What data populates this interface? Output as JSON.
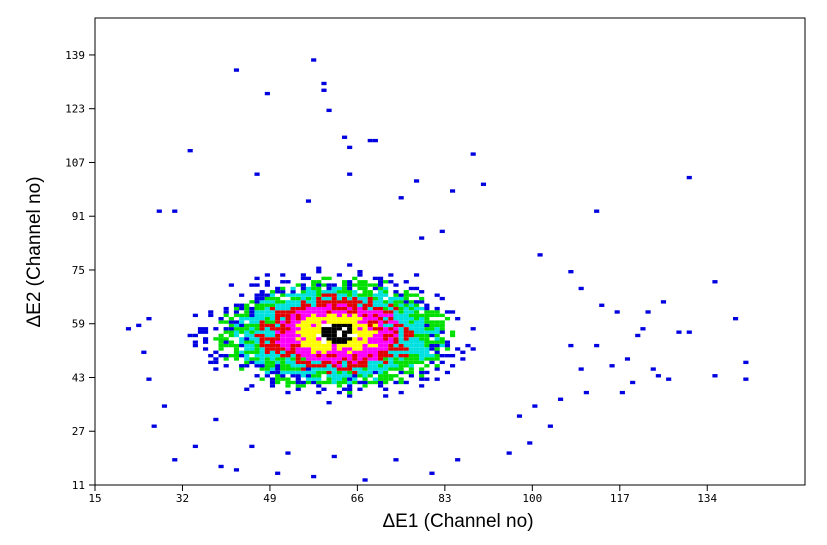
{
  "chart_data": {
    "type": "heatmap",
    "title": "",
    "xlabel": "ΔE1 (Channel no)",
    "ylabel": "ΔE2 (Channel no)",
    "xlim": [
      15,
      153
    ],
    "ylim": [
      11,
      150
    ],
    "x_ticks": [
      15,
      32,
      49,
      66,
      83,
      100,
      117,
      134
    ],
    "y_ticks": [
      11,
      27,
      43,
      59,
      75,
      91,
      107,
      123,
      139
    ],
    "grid": false,
    "legend": "none",
    "cell_size": 1,
    "peak": {
      "x": 62,
      "y": 56
    },
    "levels": [
      {
        "name": "level-1",
        "color": "#0000e0",
        "rx": 26,
        "ry": 18
      },
      {
        "name": "level-2",
        "color": "#00e000",
        "rx": 21,
        "ry": 15
      },
      {
        "name": "level-3",
        "color": "#00e0e0",
        "rx": 18,
        "ry": 13
      },
      {
        "name": "level-4",
        "color": "#e00000",
        "rx": 14,
        "ry": 10.5
      },
      {
        "name": "level-5",
        "color": "#ff00ff",
        "rx": 11,
        "ry": 8.5
      },
      {
        "name": "level-6",
        "color": "#ffff00",
        "rx": 7.5,
        "ry": 6
      },
      {
        "name": "level-7",
        "color": "#000000",
        "rx": 4,
        "ry": 3
      }
    ],
    "outliers": [
      [
        42,
        134
      ],
      [
        57,
        137
      ],
      [
        59,
        130
      ],
      [
        59,
        128
      ],
      [
        48,
        127
      ],
      [
        60,
        122
      ],
      [
        63,
        114
      ],
      [
        68,
        113
      ],
      [
        69,
        113
      ],
      [
        64,
        111
      ],
      [
        33,
        110
      ],
      [
        88,
        109
      ],
      [
        46,
        103
      ],
      [
        64,
        103
      ],
      [
        77,
        101
      ],
      [
        130,
        102
      ],
      [
        112,
        92
      ],
      [
        135,
        71
      ],
      [
        125,
        65
      ],
      [
        122,
        62
      ],
      [
        128,
        56
      ],
      [
        130,
        56
      ],
      [
        139,
        60
      ],
      [
        141,
        47
      ],
      [
        141,
        42
      ],
      [
        135,
        43
      ],
      [
        126,
        42
      ],
      [
        124,
        43
      ],
      [
        119,
        41
      ],
      [
        117,
        38
      ],
      [
        110,
        38
      ],
      [
        105,
        36
      ],
      [
        100,
        34
      ],
      [
        97,
        31
      ],
      [
        99,
        23
      ],
      [
        103,
        28
      ],
      [
        115,
        46
      ],
      [
        109,
        45
      ],
      [
        107,
        52
      ],
      [
        121,
        57
      ],
      [
        118,
        48
      ],
      [
        112,
        52
      ],
      [
        25,
        60
      ],
      [
        23,
        58
      ],
      [
        25,
        42
      ],
      [
        26,
        28
      ],
      [
        28,
        34
      ],
      [
        24,
        50
      ],
      [
        21,
        57
      ],
      [
        39,
        16
      ],
      [
        42,
        15
      ],
      [
        50,
        14
      ],
      [
        57,
        13
      ],
      [
        67,
        12
      ],
      [
        80,
        14
      ],
      [
        85,
        18
      ],
      [
        95,
        20
      ],
      [
        30,
        18
      ],
      [
        34,
        22
      ],
      [
        90,
        100
      ],
      [
        84,
        98
      ],
      [
        74,
        96
      ],
      [
        56,
        95
      ],
      [
        78,
        84
      ],
      [
        82,
        86
      ],
      [
        30,
        92
      ],
      [
        27,
        92
      ],
      [
        101,
        79
      ],
      [
        107,
        74
      ],
      [
        109,
        69
      ],
      [
        113,
        64
      ],
      [
        116,
        62
      ],
      [
        120,
        55
      ],
      [
        123,
        45
      ],
      [
        52,
        20
      ],
      [
        61,
        19
      ],
      [
        73,
        18
      ],
      [
        45,
        22
      ],
      [
        38,
        30
      ]
    ]
  }
}
